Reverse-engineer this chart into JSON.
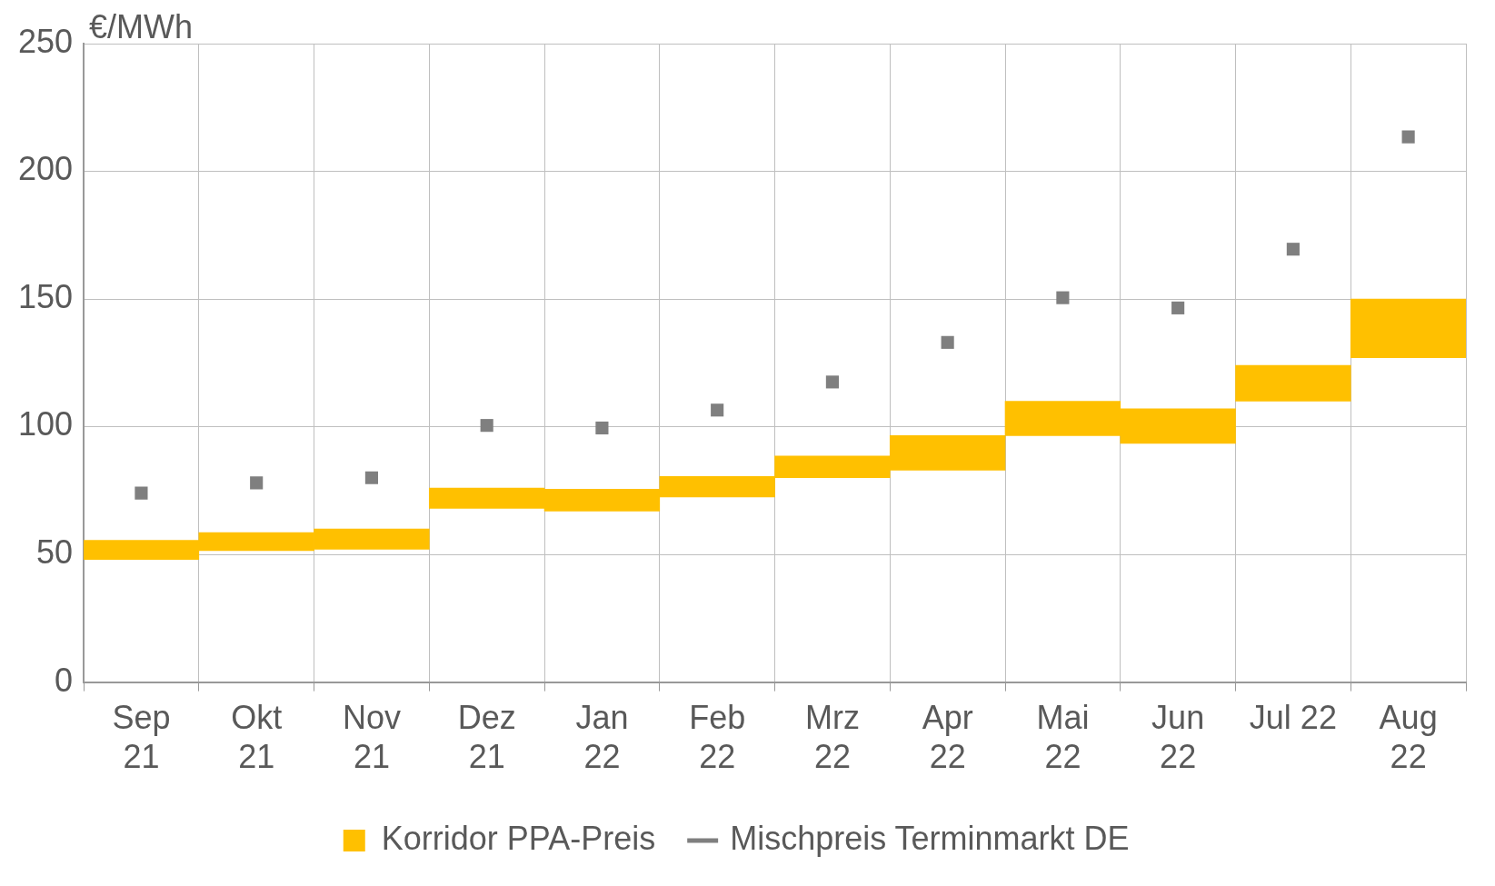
{
  "chart_data": {
    "type": "bar",
    "ylabel": "€/MWh",
    "categories": [
      "Sep\n21",
      "Okt\n21",
      "Nov\n21",
      "Dez\n21",
      "Jan\n22",
      "Feb\n22",
      "Mrz\n22",
      "Apr\n22",
      "Mai\n22",
      "Jun\n22",
      "Jul 22",
      "Aug\n22"
    ],
    "series": [
      {
        "name": "Korridor PPA-Preis",
        "color": "#ffc000",
        "base": [
          48,
          51.5,
          52,
          68,
          67,
          72.5,
          80,
          83,
          96.5,
          93.5,
          110,
          127
        ],
        "values": [
          7.5,
          7,
          8,
          8,
          8.5,
          8,
          8.5,
          13.5,
          13.5,
          13.5,
          14,
          23
        ]
      },
      {
        "name": "Mischpreis Terminmarkt DE",
        "type": "scatter",
        "color": "#7f7f7f",
        "marker": "square",
        "values": [
          74,
          78,
          80,
          100.5,
          99.5,
          106.5,
          117.5,
          133,
          150.5,
          146.5,
          169.5,
          213.5
        ]
      }
    ],
    "ylim": [
      0,
      250
    ],
    "yticks": [
      0,
      50,
      100,
      150,
      200,
      250
    ],
    "grid": true,
    "legend": "bottom"
  }
}
